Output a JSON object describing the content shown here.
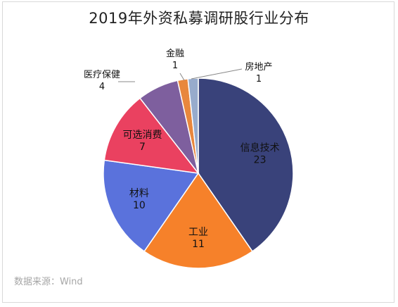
{
  "chart_data": {
    "type": "pie",
    "title": "2019年外资私募调研股行业分布",
    "source": "数据来源：Wind",
    "slices": [
      {
        "label": "信息技术",
        "value": 23,
        "color": "#39427a",
        "label_pos": "inside"
      },
      {
        "label": "工业",
        "value": 11,
        "color": "#f6812a",
        "label_pos": "inside"
      },
      {
        "label": "材料",
        "value": 10,
        "color": "#5a72dc",
        "label_pos": "inside"
      },
      {
        "label": "可选消费",
        "value": 7,
        "color": "#ea4160",
        "label_pos": "inside"
      },
      {
        "label": "医疗保健",
        "value": 4,
        "color": "#7e5f9e",
        "label_pos": "outside"
      },
      {
        "label": "金融",
        "value": 1,
        "color": "#e8873d",
        "label_pos": "outside"
      },
      {
        "label": "房地产",
        "value": 1,
        "color": "#97abcc",
        "label_pos": "outside"
      }
    ]
  }
}
